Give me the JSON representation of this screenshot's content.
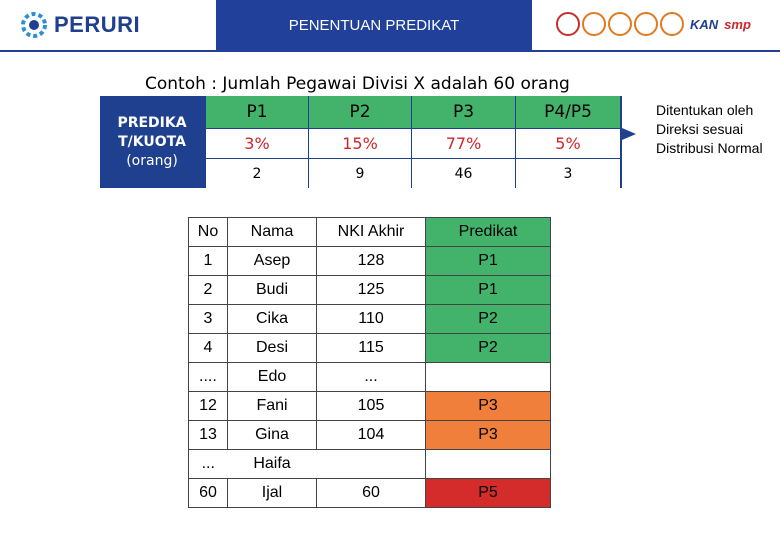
{
  "header": {
    "logo_text": "PERURI",
    "title": "PENENTUAN PREDIKAT",
    "cert_logos": [
      "iso-badge-icon",
      "cert-icon",
      "cert-icon",
      "cert-icon",
      "cert-icon"
    ],
    "kan_text": "KAN",
    "smp_text": "smp"
  },
  "subtitle": "Contoh : Jumlah Pegawai Divisi X adalah 60 orang",
  "quota": {
    "label_lines": [
      "PREDIKA",
      "T/KUOTA",
      "(orang)"
    ],
    "columns": [
      {
        "name": "P1",
        "percent": "3%",
        "count": "2"
      },
      {
        "name": "P2",
        "percent": "15%",
        "count": "9"
      },
      {
        "name": "P3",
        "percent": "77%",
        "count": "46"
      },
      {
        "name": "P4/P5",
        "percent": "5%",
        "count": "3"
      }
    ]
  },
  "side_note": "Ditentukan oleh Direksi sesuai Distribusi Normal",
  "table": {
    "headers": [
      "No",
      "Nama",
      "NKI Akhir",
      "Predikat"
    ],
    "rows": [
      {
        "no": "1",
        "nama": "Asep",
        "nki": "128",
        "predikat": "P1",
        "color": "#43b36b"
      },
      {
        "no": "2",
        "nama": "Budi",
        "nki": "125",
        "predikat": "P1",
        "color": "#43b36b"
      },
      {
        "no": "3",
        "nama": "Cika",
        "nki": "110",
        "predikat": "P2",
        "color": "#43b36b"
      },
      {
        "no": "4",
        "nama": "Desi",
        "nki": "115",
        "predikat": "P2",
        "color": "#43b36b"
      },
      {
        "no": "....",
        "nama": "Edo",
        "nki": "...",
        "predikat": "",
        "color": "#ffffff"
      },
      {
        "no": "12",
        "nama": "Fani",
        "nki": "105",
        "predikat": "P3",
        "color": "#f07f3c"
      },
      {
        "no": "13",
        "nama": "Gina",
        "nki": "104",
        "predikat": "P3",
        "color": "#f07f3c"
      },
      {
        "no": "...",
        "nama": "Haifa",
        "nki": "",
        "predikat": "",
        "color": "#ffffff"
      },
      {
        "no": "60",
        "nama": "Ijal",
        "nki": "60",
        "predikat": "P5",
        "color": "#d42b2b"
      }
    ]
  },
  "colors": {
    "brand_blue": "#20409a",
    "green": "#43b36b",
    "orange": "#f07f3c",
    "red": "#d42b2b"
  }
}
